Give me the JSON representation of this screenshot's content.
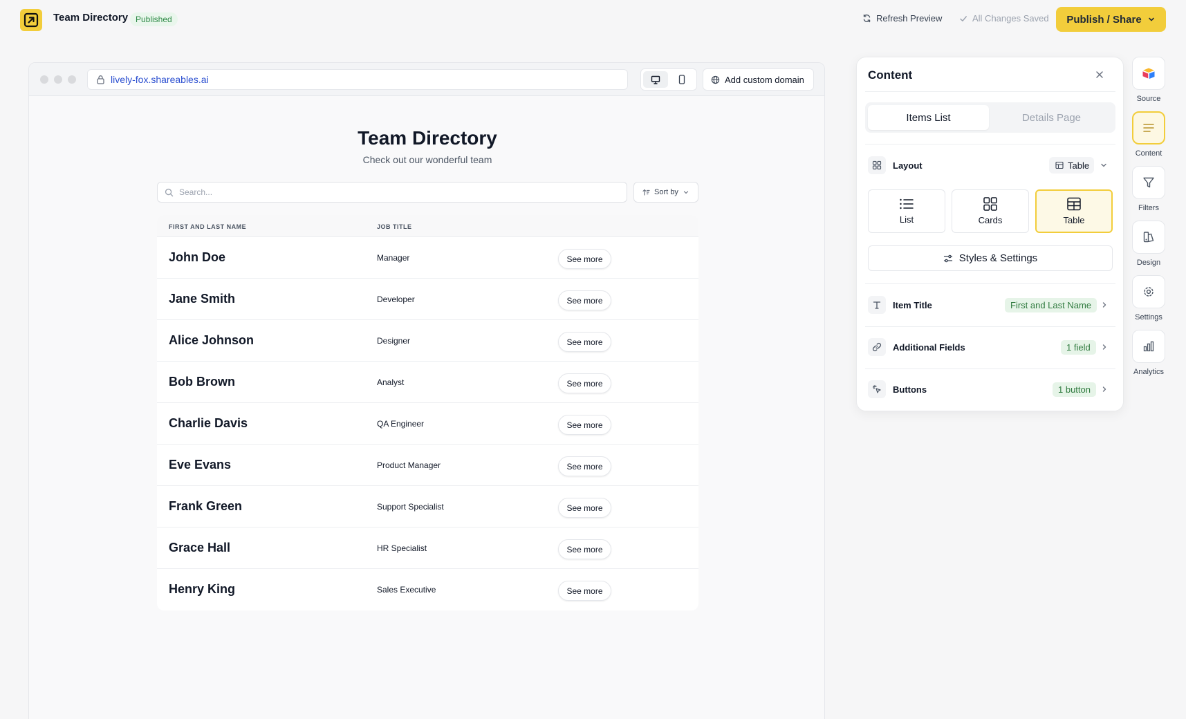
{
  "header": {
    "title": "Team Directory",
    "status": "Published",
    "refresh_label": "Refresh Preview",
    "saved_label": "All Changes Saved",
    "publish_label": "Publish / Share",
    "brand_color": "#f2cd3b"
  },
  "preview": {
    "url": "lively-fox.shareables.ai",
    "custom_domain_label": "Add custom domain",
    "page_title": "Team Directory",
    "page_subtitle": "Check out our wonderful team",
    "search_placeholder": "Search...",
    "sort_label": "Sort by",
    "columns": [
      "FIRST AND LAST NAME",
      "JOB TITLE"
    ],
    "button_label": "See more",
    "rows": [
      {
        "name": "John Doe",
        "job": "Manager"
      },
      {
        "name": "Jane Smith",
        "job": "Developer"
      },
      {
        "name": "Alice Johnson",
        "job": "Designer"
      },
      {
        "name": "Bob Brown",
        "job": "Analyst"
      },
      {
        "name": "Charlie Davis",
        "job": "QA Engineer"
      },
      {
        "name": "Eve Evans",
        "job": "Product Manager"
      },
      {
        "name": "Frank Green",
        "job": "Support Specialist"
      },
      {
        "name": "Grace Hall",
        "job": "HR Specialist"
      },
      {
        "name": "Henry King",
        "job": "Sales Executive"
      }
    ]
  },
  "panel": {
    "title": "Content",
    "tabs": [
      {
        "label": "Items List",
        "active": true
      },
      {
        "label": "Details Page",
        "active": false
      }
    ],
    "layout_label": "Layout",
    "layout_value": "Table",
    "layout_options": [
      {
        "label": "List",
        "icon": "list-icon"
      },
      {
        "label": "Cards",
        "icon": "cards-grid-icon"
      },
      {
        "label": "Table",
        "icon": "table-icon",
        "active": true
      }
    ],
    "styles_label": "Styles & Settings",
    "item_title_label": "Item Title",
    "item_title_value": "First and Last Name",
    "additional_fields_label": "Additional Fields",
    "additional_fields_value": "1 field",
    "buttons_label": "Buttons",
    "buttons_value": "1 button"
  },
  "rail": [
    {
      "label": "Source",
      "icon": "airtable-icon"
    },
    {
      "label": "Content",
      "icon": "content-lines-icon",
      "active": true
    },
    {
      "label": "Filters",
      "icon": "filter-icon"
    },
    {
      "label": "Design",
      "icon": "design-icon"
    },
    {
      "label": "Settings",
      "icon": "gear-icon"
    },
    {
      "label": "Analytics",
      "icon": "bar-chart-icon"
    }
  ]
}
